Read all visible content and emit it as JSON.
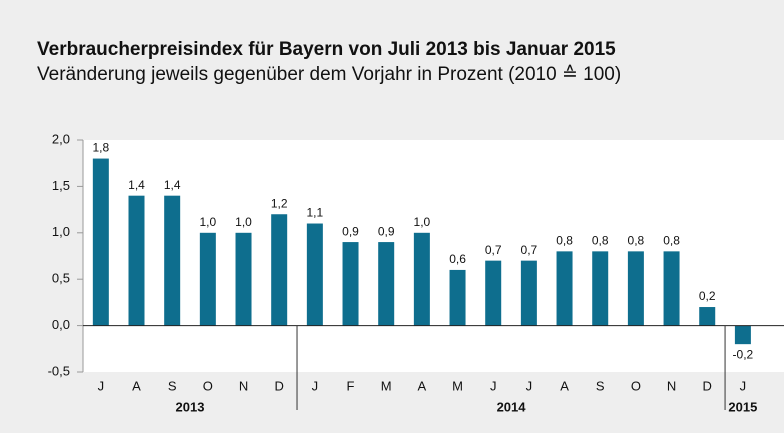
{
  "chart_data": {
    "type": "bar",
    "title": "Verbraucherpreisindex für Bayern von Juli 2013 bis Januar 2015",
    "subtitle": "Veränderung jeweils gegenüber dem Vorjahr in Prozent (2010 ≙ 100)",
    "categories": [
      "J",
      "A",
      "S",
      "O",
      "N",
      "D",
      "J",
      "F",
      "M",
      "A",
      "M",
      "J",
      "J",
      "A",
      "S",
      "O",
      "N",
      "D",
      "J"
    ],
    "category_years": [
      "2013",
      "2013",
      "2013",
      "2013",
      "2013",
      "2013",
      "2014",
      "2014",
      "2014",
      "2014",
      "2014",
      "2014",
      "2014",
      "2014",
      "2014",
      "2014",
      "2014",
      "2014",
      "2015"
    ],
    "values": [
      1.8,
      1.4,
      1.4,
      1.0,
      1.0,
      1.2,
      1.1,
      0.9,
      0.9,
      1.0,
      0.6,
      0.7,
      0.7,
      0.8,
      0.8,
      0.8,
      0.8,
      0.2,
      -0.2
    ],
    "value_labels": [
      "1,8",
      "1,4",
      "1,4",
      "1,0",
      "1,0",
      "1,2",
      "1,1",
      "0,9",
      "0,9",
      "1,0",
      "0,6",
      "0,7",
      "0,7",
      "0,8",
      "0,8",
      "0,8",
      "0,8",
      "0,2",
      "-0,2"
    ],
    "color": "#0e6e8e",
    "ylim": [
      -0.5,
      2.0
    ],
    "yticks": [
      {
        "value": -0.5,
        "label": "-0,5"
      },
      {
        "value": 0,
        "label": "0,0"
      },
      {
        "value": 0.5,
        "label": "0,5"
      },
      {
        "value": 1.0,
        "label": "1,0"
      },
      {
        "value": 1.5,
        "label": "1,5"
      },
      {
        "value": 2.0,
        "label": "2,0"
      }
    ]
  }
}
